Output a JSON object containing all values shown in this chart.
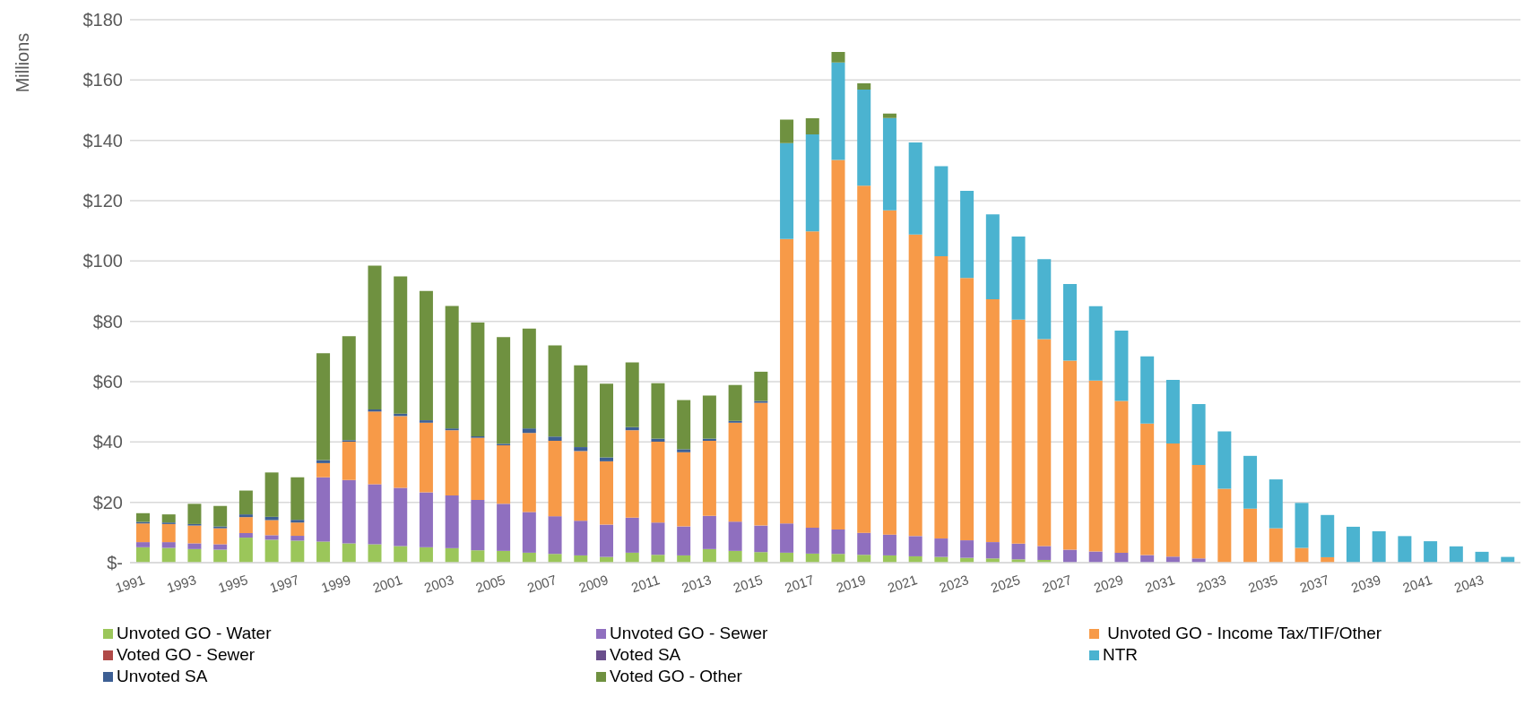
{
  "chart_data": {
    "type": "bar",
    "stacked": true,
    "ylabel": "Millions",
    "categories": [
      "1991",
      null,
      "1993",
      null,
      "1995",
      null,
      "1997",
      null,
      "1999",
      null,
      "2001",
      null,
      "2003",
      null,
      "2005",
      null,
      "2007",
      null,
      "2009",
      null,
      "2011",
      null,
      "2013",
      null,
      "2015",
      null,
      "2017",
      null,
      "2019",
      null,
      "2021",
      null,
      "2023",
      null,
      "2025",
      null,
      "2027",
      null,
      "2029",
      null,
      "2031",
      null,
      "2033",
      null,
      "2035",
      null,
      "2037",
      null,
      "2039",
      null,
      "2041",
      null,
      "2043",
      null
    ],
    "ylim": [
      0,
      180
    ],
    "yticks": [
      {
        "value": 0,
        "label": "$-"
      },
      {
        "value": 20,
        "label": "$20"
      },
      {
        "value": 40,
        "label": "$40"
      },
      {
        "value": 60,
        "label": "$60"
      },
      {
        "value": 80,
        "label": "$80"
      },
      {
        "value": 100,
        "label": "$100"
      },
      {
        "value": 120,
        "label": "$120"
      },
      {
        "value": 140,
        "label": "$140"
      },
      {
        "value": 160,
        "label": "$160"
      },
      {
        "value": 180,
        "label": "$180"
      }
    ],
    "grid": "y",
    "legend": "bottom",
    "series": [
      {
        "name": "Unvoted GO - Water",
        "color": "#9bc65a",
        "values": [
          5.1,
          4.9,
          4.5,
          4.3,
          8.3,
          7.6,
          7.3,
          7.0,
          6.4,
          6.1,
          5.5,
          5.1,
          4.8,
          4.1,
          3.9,
          3.3,
          2.9,
          2.4,
          1.9,
          3.3,
          2.6,
          2.4,
          4.5,
          3.9,
          3.5,
          3.3,
          3.0,
          2.9,
          2.6,
          2.4,
          2.1,
          1.9,
          1.6,
          1.4,
          1.1,
          0.9,
          null,
          null,
          0,
          0,
          0,
          0,
          0,
          0,
          0,
          0,
          0,
          0,
          0,
          0,
          0,
          0,
          0,
          0
        ]
      },
      {
        "name": "Unvoted GO - Sewer",
        "color": "#8f6fbf",
        "values": [
          1.7,
          1.9,
          1.9,
          1.8,
          1.5,
          1.5,
          1.6,
          21.3,
          21.0,
          19.9,
          19.3,
          18.2,
          17.5,
          16.7,
          15.6,
          13.5,
          12.5,
          11.5,
          10.7,
          11.6,
          10.7,
          9.6,
          11.0,
          9.7,
          8.8,
          9.7,
          8.6,
          8.1,
          7.3,
          6.9,
          6.7,
          6.1,
          5.8,
          5.4,
          5.2,
          4.6,
          4.3,
          3.7,
          3.3,
          2.5,
          2.0,
          1.4,
          null,
          0,
          0,
          0,
          0,
          0,
          0,
          0,
          0,
          0,
          0,
          0
        ]
      },
      {
        "name": " Unvoted GO - Income Tax/TIF/Other",
        "color": "#f79a48",
        "values": [
          6.2,
          6.0,
          5.9,
          5.3,
          5.3,
          5.0,
          4.4,
          4.7,
          12.7,
          24.1,
          23.8,
          23.1,
          21.6,
          20.6,
          19.4,
          26.2,
          25.0,
          23.1,
          21.0,
          29.0,
          26.8,
          24.6,
          24.9,
          32.8,
          40.7,
          94.3,
          98.2,
          122.5,
          115.1,
          107.5,
          100.0,
          93.6,
          87.0,
          80.5,
          74.3,
          68.6,
          62.7,
          56.7,
          50.3,
          43.6,
          37.5,
          31.0,
          24.5,
          17.9,
          11.4,
          4.9,
          1.8,
          0,
          0,
          0,
          0,
          0,
          0,
          0
        ]
      },
      {
        "name": "Voted GO - Sewer",
        "color": "#b04a48",
        "values": [
          0,
          0,
          0,
          0,
          0,
          0,
          0,
          0,
          0,
          0,
          0,
          0,
          0,
          0,
          0,
          0,
          0,
          0,
          0,
          0,
          0,
          0,
          0,
          0,
          0,
          0,
          0,
          0,
          0,
          0,
          0,
          0,
          0,
          0,
          0,
          0,
          0,
          0,
          0,
          0,
          0,
          0,
          0,
          0,
          0,
          0,
          0,
          0,
          0,
          0,
          0,
          0,
          0,
          0
        ]
      },
      {
        "name": "Voted SA",
        "color": "#6a4f8c",
        "values": [
          0,
          0,
          0,
          0,
          0,
          0,
          0,
          0,
          0,
          0,
          0,
          0,
          0,
          0,
          0,
          0,
          0,
          0,
          0,
          0,
          0,
          0,
          0,
          0,
          0,
          0,
          0,
          0,
          0,
          0,
          0,
          0,
          0,
          0,
          0,
          0,
          0,
          0,
          0,
          0,
          0,
          0,
          0,
          0,
          0,
          0,
          0,
          0,
          0,
          0,
          0,
          0,
          0,
          0
        ]
      },
      {
        "name": "NTR",
        "color": "#4bb3d0",
        "values": [
          0,
          0,
          0,
          0,
          0,
          0,
          0,
          0,
          0,
          0,
          0,
          0,
          0,
          0,
          0,
          0,
          0,
          0,
          0,
          0,
          0,
          0,
          0,
          0,
          0,
          31.8,
          32.2,
          32.3,
          31.8,
          30.6,
          30.5,
          29.8,
          28.9,
          28.2,
          27.5,
          26.5,
          25.4,
          24.6,
          23.3,
          22.3,
          21.1,
          20.2,
          19.0,
          17.5,
          16.2,
          14.9,
          14.0,
          11.9,
          10.4,
          8.8,
          7.1,
          5.4,
          3.6,
          1.9
        ]
      },
      {
        "name": "Unvoted SA",
        "color": "#3d5f94",
        "values": [
          0.5,
          0.5,
          0.5,
          0.6,
          0.9,
          1.1,
          0.9,
          1.0,
          0.5,
          0.7,
          0.8,
          0.8,
          0.6,
          0.5,
          0.5,
          1.5,
          1.4,
          1.3,
          1.3,
          1.0,
          1.0,
          1.0,
          0.7,
          0.6,
          0.6,
          0,
          0,
          0,
          0,
          0,
          0,
          0,
          0,
          0,
          0,
          0,
          0,
          0,
          0,
          0,
          0,
          0,
          0,
          0,
          0,
          0,
          0,
          0,
          0,
          0,
          0,
          0,
          0,
          0
        ]
      },
      {
        "name": "Voted GO - Other",
        "color": "#6f9140",
        "values": [
          2.9,
          2.7,
          6.7,
          6.8,
          7.9,
          14.7,
          14.1,
          35.4,
          34.5,
          47.7,
          45.5,
          42.9,
          40.6,
          37.7,
          35.4,
          33.1,
          30.2,
          27.1,
          24.4,
          21.5,
          18.4,
          16.3,
          14.3,
          11.9,
          9.7,
          7.8,
          5.3,
          3.5,
          2.1,
          1.5,
          0,
          0,
          0,
          0,
          0,
          0,
          0,
          0,
          0,
          0,
          0,
          0,
          0,
          0,
          0,
          0,
          0,
          0,
          0,
          0,
          0,
          0,
          0,
          0
        ]
      }
    ]
  }
}
